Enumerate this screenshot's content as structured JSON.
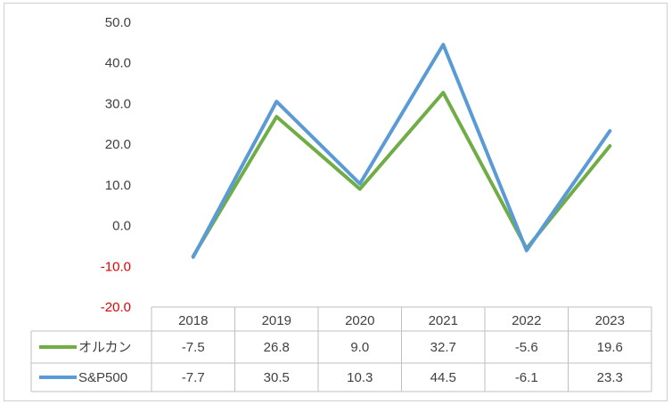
{
  "chart_data": {
    "type": "line",
    "categories": [
      "2018",
      "2019",
      "2020",
      "2021",
      "2022",
      "2023"
    ],
    "series": [
      {
        "name": "オルカン",
        "values": [
          -7.5,
          26.8,
          9.0,
          32.7,
          -5.6,
          19.6
        ],
        "color": "#70ad47"
      },
      {
        "name": "S&P500",
        "values": [
          -7.7,
          30.5,
          10.3,
          44.5,
          -6.1,
          23.3
        ],
        "color": "#5b9bd5"
      }
    ],
    "ylim": [
      -20,
      50
    ],
    "yticks": [
      "50.0",
      "40.0",
      "30.0",
      "20.0",
      "10.0",
      "0.0",
      "-10.0",
      "-20.0"
    ],
    "ytick_values": [
      50,
      40,
      30,
      20,
      10,
      0,
      -10,
      -20
    ],
    "negative_tick_color": "#e00000",
    "grid": false,
    "legend": "data-table",
    "data_table": {
      "rows": [
        [
          "-7.5",
          "26.8",
          "9.0",
          "32.7",
          "-5.6",
          "19.6"
        ],
        [
          "-7.7",
          "30.5",
          "10.3",
          "44.5",
          "-6.1",
          "23.3"
        ]
      ]
    }
  }
}
